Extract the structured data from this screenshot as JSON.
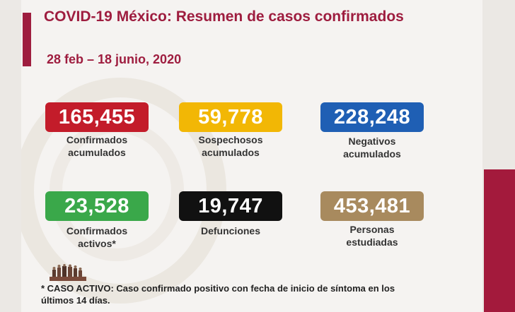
{
  "header": {
    "title": "COVID-19 México: Resumen de casos confirmados",
    "date_range": "28 feb – 18 junio, 2020"
  },
  "stats": [
    {
      "value": "165,455",
      "label_line1": "Confirmados",
      "label_line2": "acumulados",
      "color": "#c31c2a"
    },
    {
      "value": "59,778",
      "label_line1": "Sospechosos",
      "label_line2": "acumulados",
      "color": "#f2b705"
    },
    {
      "value": "228,248",
      "label_line1": "Negativos",
      "label_line2": "acumulados",
      "color": "#1f5fb4"
    },
    {
      "value": "23,528",
      "label_line1": "Confirmados",
      "label_line2": "activos*",
      "color": "#3aa84a"
    },
    {
      "value": "19,747",
      "label_line1": "Defunciones",
      "label_line2": "",
      "color": "#111111"
    },
    {
      "value": "453,481",
      "label_line1": "Personas",
      "label_line2": "estudiadas",
      "color": "#a88a5e"
    }
  ],
  "footnote": {
    "line1": "* CASO ACTIVO: Caso confirmado positivo con fecha de inicio de síntoma en los",
    "line2": "últimos 14 días."
  },
  "colors": {
    "brand": "#9e1d3f",
    "background": "#f5f3f1"
  }
}
